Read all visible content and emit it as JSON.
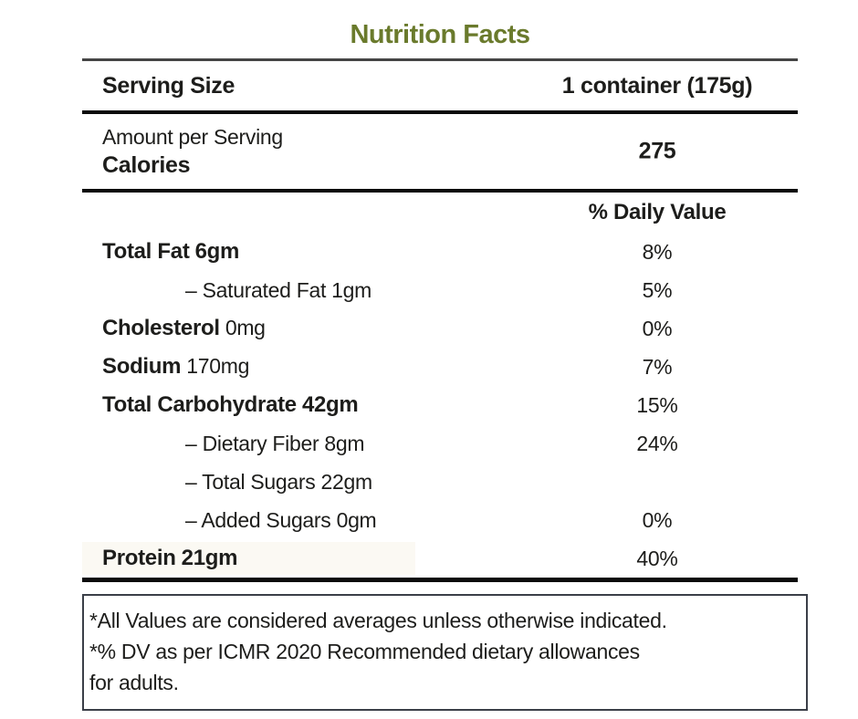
{
  "title": "Nutrition Facts",
  "colors": {
    "title_green": "#6a7a2c",
    "text": "#1d1d1b",
    "rule_black": "#0b0b0b",
    "rule_gray": "#454545",
    "protein_highlight": "#fbf9f3"
  },
  "serving": {
    "label": "Serving Size",
    "value": "1 container (175g)"
  },
  "calories": {
    "subtitle": "Amount per Serving",
    "label": "Calories",
    "value": "275"
  },
  "daily_value_header": "% Daily Value",
  "rows": [
    {
      "label": "Total Fat",
      "amount": "6gm",
      "dv": "8%",
      "variant": "bold",
      "highlight": false
    },
    {
      "label": "– Saturated Fat",
      "amount": "1gm",
      "dv": "5%",
      "variant": "indent",
      "highlight": false
    },
    {
      "label": "Cholesterol",
      "amount": "0mg",
      "dv": "0%",
      "variant": "bold-name",
      "highlight": false
    },
    {
      "label": "Sodium",
      "amount": "170mg",
      "dv": "7%",
      "variant": "bold-name",
      "highlight": false
    },
    {
      "label": "Total Carbohydrate",
      "amount": "42gm",
      "dv": "15%",
      "variant": "bold",
      "highlight": false
    },
    {
      "label": "– Dietary Fiber",
      "amount": "8gm",
      "dv": "24%",
      "variant": "indent",
      "highlight": false
    },
    {
      "label": "– Total Sugars",
      "amount": "22gm",
      "dv": "",
      "variant": "indent",
      "highlight": false
    },
    {
      "label": "– Added Sugars",
      "amount": "0gm",
      "dv": "0%",
      "variant": "indent",
      "highlight": false
    },
    {
      "label": "Protein",
      "amount": "21gm",
      "dv": "40%",
      "variant": "bold",
      "highlight": true
    }
  ],
  "footnote": {
    "lines": [
      "*All Values are considered averages unless otherwise indicated.",
      "*% DV as per ICMR 2020 Recommended dietary allowances",
      "for adults."
    ]
  }
}
